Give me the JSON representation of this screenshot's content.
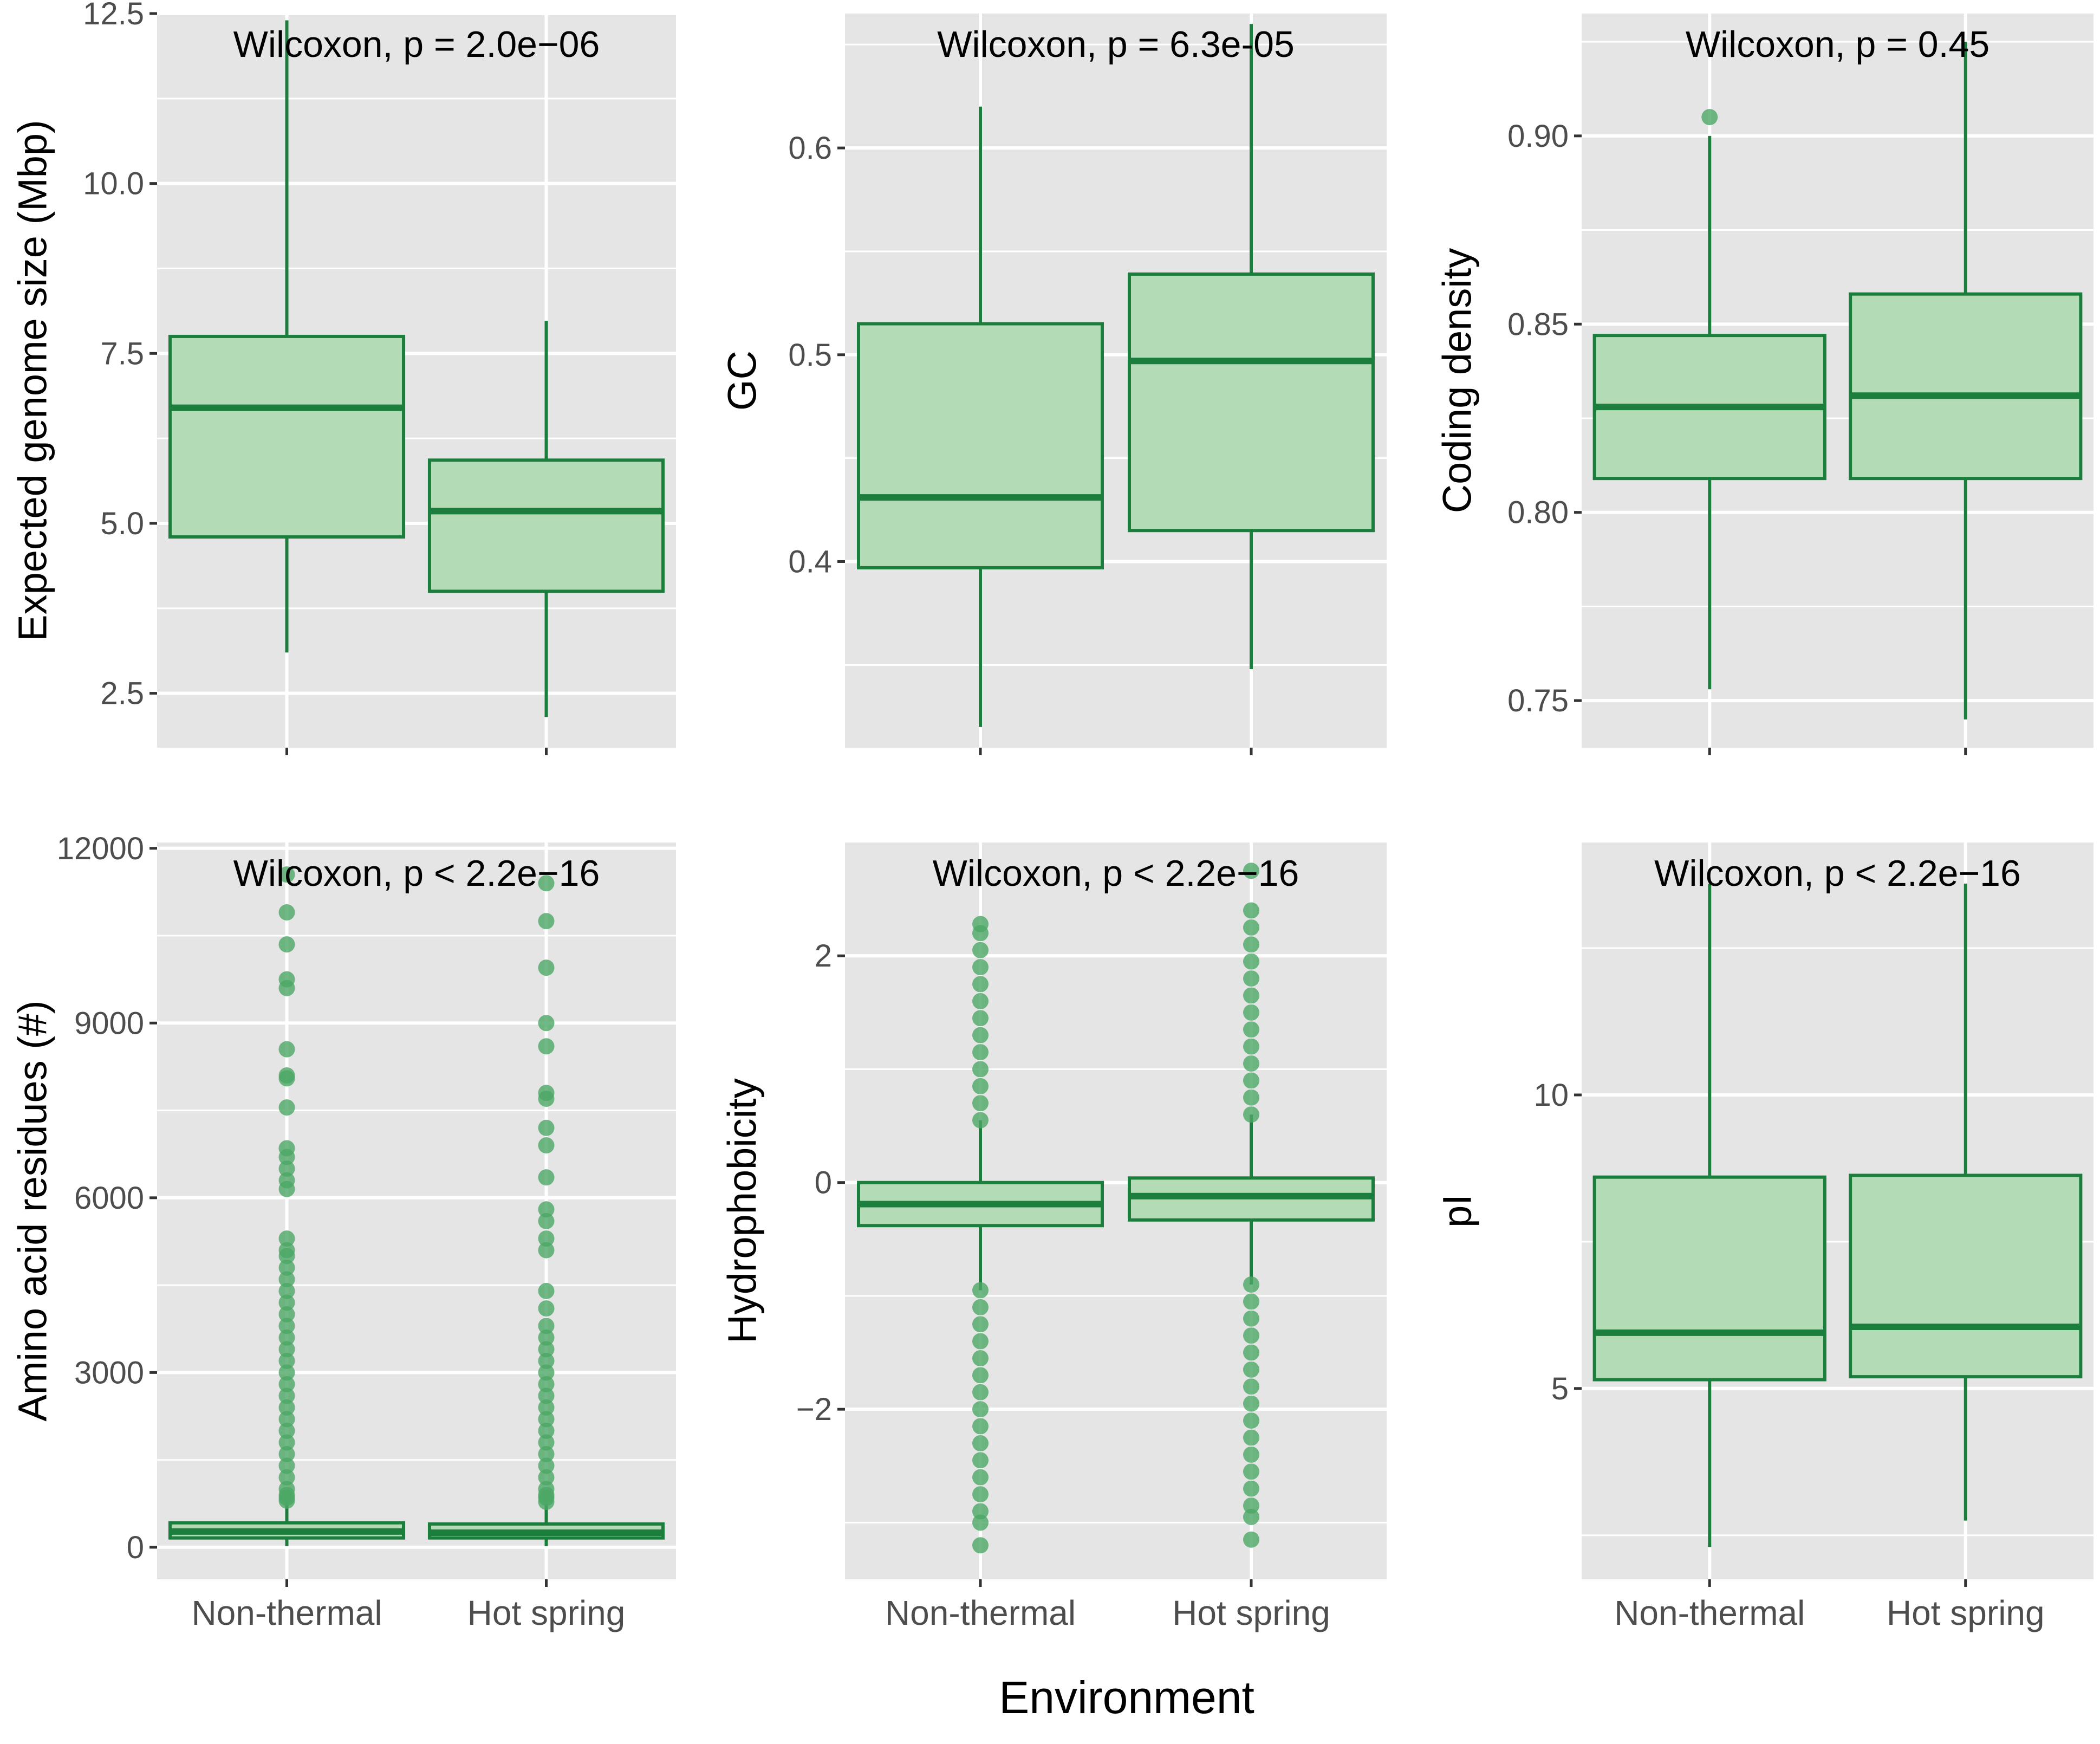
{
  "figure": {
    "x_axis_title": "Environment",
    "categories": [
      "Non-thermal",
      "Hot spring"
    ],
    "colors": {
      "panel_bg": "#e5e5e5",
      "grid": "#ffffff",
      "box_fill": "#b3dbb5",
      "box_line": "#1b7e3d",
      "outlier": "#4ca865",
      "tick_text": "#4d4d4d",
      "tick_mark": "#333333"
    }
  },
  "chart_data": [
    {
      "type": "box",
      "ylabel": "Expected genome size (Mbp)",
      "annotation": "Wilcoxon, p = 2.0e−06",
      "ylim": [
        1.7,
        12.5
      ],
      "yticks": [
        2.5,
        5.0,
        7.5,
        10.0,
        12.5
      ],
      "ytick_labels": [
        "2.5",
        "5.0",
        "7.5",
        "10.0",
        "12.5"
      ],
      "show_x_labels": false,
      "boxes": [
        {
          "category": "Non-thermal",
          "min": 3.1,
          "q1": 4.8,
          "median": 6.7,
          "q3": 7.75,
          "max": 12.4,
          "outliers": []
        },
        {
          "category": "Hot spring",
          "min": 2.15,
          "q1": 4.0,
          "median": 5.18,
          "q3": 5.93,
          "max": 7.98,
          "outliers": []
        }
      ]
    },
    {
      "type": "box",
      "ylabel": "GC",
      "annotation": "Wilcoxon, p = 6.3e-05",
      "ylim": [
        0.31,
        0.665
      ],
      "yticks": [
        0.4,
        0.5,
        0.6
      ],
      "ytick_labels": [
        "0.4",
        "0.5",
        "0.6"
      ],
      "show_x_labels": false,
      "boxes": [
        {
          "category": "Non-thermal",
          "min": 0.32,
          "q1": 0.397,
          "median": 0.431,
          "q3": 0.515,
          "max": 0.62,
          "outliers": []
        },
        {
          "category": "Hot spring",
          "min": 0.348,
          "q1": 0.415,
          "median": 0.497,
          "q3": 0.539,
          "max": 0.66,
          "outliers": []
        }
      ]
    },
    {
      "type": "box",
      "ylabel": "Coding density",
      "annotation": "Wilcoxon, p = 0.45",
      "ylim": [
        0.7375,
        0.9325
      ],
      "yticks": [
        0.75,
        0.8,
        0.85,
        0.9
      ],
      "ytick_labels": [
        "0.75",
        "0.80",
        "0.85",
        "0.90"
      ],
      "show_x_labels": false,
      "boxes": [
        {
          "category": "Non-thermal",
          "min": 0.753,
          "q1": 0.809,
          "median": 0.828,
          "q3": 0.847,
          "max": 0.9,
          "outliers": [
            0.905
          ]
        },
        {
          "category": "Hot spring",
          "min": 0.745,
          "q1": 0.809,
          "median": 0.831,
          "q3": 0.858,
          "max": 0.925,
          "outliers": []
        }
      ]
    },
    {
      "type": "box",
      "ylabel": "Amino acid residues (#)",
      "annotation": "Wilcoxon, p < 2.2e−16",
      "ylim": [
        -550,
        12100
      ],
      "yticks": [
        0,
        3000,
        6000,
        9000,
        12000
      ],
      "ytick_labels": [
        "0",
        "3000",
        "6000",
        "9000",
        "12000"
      ],
      "show_x_labels": true,
      "boxes": [
        {
          "category": "Non-thermal",
          "min": 20,
          "q1": 160,
          "median": 270,
          "q3": 420,
          "max": 800,
          "outliers": [
            800,
            850,
            900,
            1000,
            1200,
            1400,
            1600,
            1800,
            2000,
            2200,
            2400,
            2600,
            2800,
            3000,
            3200,
            3400,
            3600,
            3800,
            4000,
            4200,
            4400,
            4600,
            4800,
            5000,
            5100,
            5300,
            6150,
            6300,
            6500,
            6700,
            6850,
            7550,
            8050,
            8100,
            8550,
            9600,
            9750,
            10350,
            10900,
            11550
          ]
        },
        {
          "category": "Hot spring",
          "min": 20,
          "q1": 160,
          "median": 250,
          "q3": 400,
          "max": 750,
          "outliers": [
            780,
            850,
            900,
            1000,
            1200,
            1400,
            1600,
            1800,
            2000,
            2200,
            2400,
            2600,
            2800,
            3000,
            3200,
            3400,
            3600,
            3800,
            4100,
            4400,
            5100,
            5300,
            5600,
            5800,
            6350,
            6900,
            7200,
            7700,
            7800,
            8600,
            9000,
            9950,
            10750,
            11400
          ]
        }
      ]
    },
    {
      "type": "box",
      "ylabel": "Hydrophobicity",
      "annotation": "Wilcoxon, p < 2.2e−16",
      "ylim": [
        -3.5,
        3.0
      ],
      "yticks": [
        -2,
        0,
        2
      ],
      "ytick_labels": [
        "−2",
        "0",
        "2"
      ],
      "show_x_labels": true,
      "boxes": [
        {
          "category": "Non-thermal",
          "min": -0.95,
          "q1": -0.38,
          "median": -0.19,
          "q3": 0.0,
          "max": 0.55,
          "outliers": [
            0.55,
            0.7,
            0.85,
            1.0,
            1.15,
            1.3,
            1.45,
            1.6,
            1.75,
            1.9,
            2.05,
            2.2,
            2.28,
            -0.95,
            -1.1,
            -1.25,
            -1.4,
            -1.55,
            -1.7,
            -1.85,
            -2.0,
            -2.15,
            -2.3,
            -2.45,
            -2.6,
            -2.75,
            -2.9,
            -3.0,
            -3.2
          ]
        },
        {
          "category": "Hot spring",
          "min": -0.9,
          "q1": -0.33,
          "median": -0.12,
          "q3": 0.04,
          "max": 0.6,
          "outliers": [
            0.6,
            0.75,
            0.9,
            1.05,
            1.2,
            1.35,
            1.5,
            1.65,
            1.8,
            1.95,
            2.1,
            2.25,
            2.4,
            2.75,
            -0.9,
            -1.05,
            -1.2,
            -1.35,
            -1.5,
            -1.65,
            -1.8,
            -1.95,
            -2.1,
            -2.25,
            -2.4,
            -2.55,
            -2.7,
            -2.85,
            -2.95,
            -3.15
          ]
        }
      ]
    },
    {
      "type": "box",
      "ylabel": "pI",
      "annotation": "Wilcoxon, p < 2.2e−16",
      "ylim": [
        1.75,
        14.3
      ],
      "yticks": [
        5,
        10
      ],
      "ytick_labels": [
        "5",
        "10"
      ],
      "show_x_labels": true,
      "boxes": [
        {
          "category": "Non-thermal",
          "min": 2.3,
          "q1": 5.15,
          "median": 5.95,
          "q3": 8.6,
          "max": 13.6,
          "outliers": []
        },
        {
          "category": "Hot spring",
          "min": 2.75,
          "q1": 5.2,
          "median": 6.05,
          "q3": 8.63,
          "max": 13.6,
          "outliers": []
        }
      ]
    }
  ]
}
